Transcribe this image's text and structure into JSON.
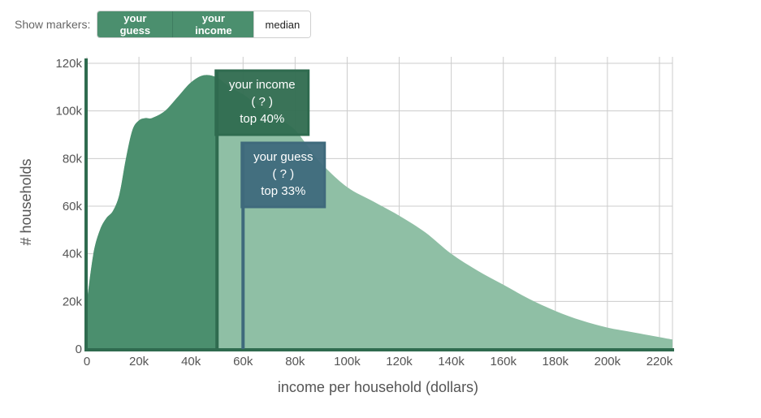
{
  "toolbar": {
    "label": "Show markers:",
    "buttons": [
      {
        "label": "your guess",
        "active": true
      },
      {
        "label": "your income",
        "active": true
      },
      {
        "label": "median",
        "active": false
      }
    ]
  },
  "colors": {
    "area_light": "#8fbfa5",
    "area_dark": "#4b8f6e",
    "axis": "#2f6b4f",
    "income_marker": "#2f6b4f",
    "guess_marker": "#3f6a7c",
    "grid": "#cccccc"
  },
  "chart_data": {
    "type": "area",
    "xlabel": "income per household (dollars)",
    "ylabel": "# households",
    "xlim": [
      0,
      225000
    ],
    "ylim": [
      0,
      120000
    ],
    "x_ticks": [
      0,
      20000,
      40000,
      60000,
      80000,
      100000,
      120000,
      140000,
      160000,
      180000,
      200000,
      220000
    ],
    "x_tick_labels": [
      "0",
      "20k",
      "40k",
      "60k",
      "80k",
      "100k",
      "120k",
      "140k",
      "160k",
      "180k",
      "200k",
      "220k"
    ],
    "y_ticks": [
      0,
      20000,
      40000,
      60000,
      80000,
      100000,
      120000
    ],
    "y_tick_labels": [
      "0",
      "20k",
      "40k",
      "60k",
      "80k",
      "100k",
      "120k"
    ],
    "grid": true,
    "x": [
      0,
      2500,
      5000,
      7500,
      10000,
      12500,
      15000,
      17500,
      20000,
      22500,
      25000,
      30000,
      35000,
      40000,
      45000,
      50000,
      55000,
      60000,
      65000,
      70000,
      75000,
      80000,
      85000,
      90000,
      100000,
      110000,
      120000,
      130000,
      140000,
      150000,
      160000,
      170000,
      180000,
      190000,
      200000,
      210000,
      220000,
      225000
    ],
    "values": [
      20000,
      40000,
      50000,
      55000,
      58000,
      65000,
      80000,
      92000,
      96000,
      97000,
      97000,
      100000,
      106000,
      112000,
      115000,
      114000,
      110000,
      107000,
      103000,
      100000,
      96000,
      92000,
      85000,
      78000,
      68000,
      62000,
      56000,
      49000,
      40000,
      33000,
      27000,
      21000,
      16000,
      12000,
      9000,
      7000,
      5000,
      4000
    ],
    "shaded_up_to_x": 50000,
    "markers": [
      {
        "name": "your income",
        "x": 50000,
        "value_label": "( ? )",
        "rank_label": "top 40%"
      },
      {
        "name": "your guess",
        "x": 60000,
        "value_label": "( ? )",
        "rank_label": "top 33%"
      }
    ]
  }
}
